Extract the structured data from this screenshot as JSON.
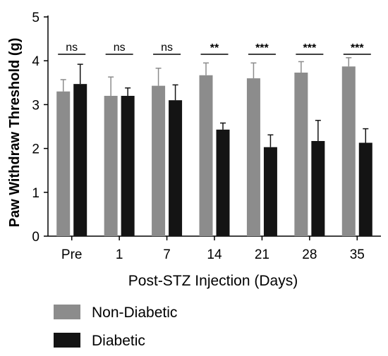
{
  "chart_data": {
    "type": "bar",
    "title": "",
    "xlabel": "Post-STZ Injection (Days)",
    "ylabel": "Paw Withdraw Threshold (g)",
    "ylim": [
      0,
      5
    ],
    "yticks": [
      0,
      1,
      2,
      3,
      4,
      5
    ],
    "categories": [
      "Pre",
      "1",
      "7",
      "14",
      "21",
      "28",
      "35"
    ],
    "series": [
      {
        "name": "Non-Diabetic",
        "color": "#8c8c8c",
        "values": [
          3.3,
          3.2,
          3.43,
          3.67,
          3.6,
          3.73,
          3.87
        ],
        "errors": [
          0.27,
          0.43,
          0.4,
          0.28,
          0.35,
          0.25,
          0.2
        ]
      },
      {
        "name": "Diabetic",
        "color": "#141414",
        "values": [
          3.47,
          3.2,
          3.1,
          2.43,
          2.03,
          2.17,
          2.13
        ],
        "errors": [
          0.45,
          0.18,
          0.35,
          0.15,
          0.28,
          0.47,
          0.32
        ]
      }
    ],
    "significance": [
      "ns",
      "ns",
      "ns",
      "**",
      "***",
      "***",
      "***"
    ],
    "legend_position": "bottom-left",
    "grid": false
  }
}
